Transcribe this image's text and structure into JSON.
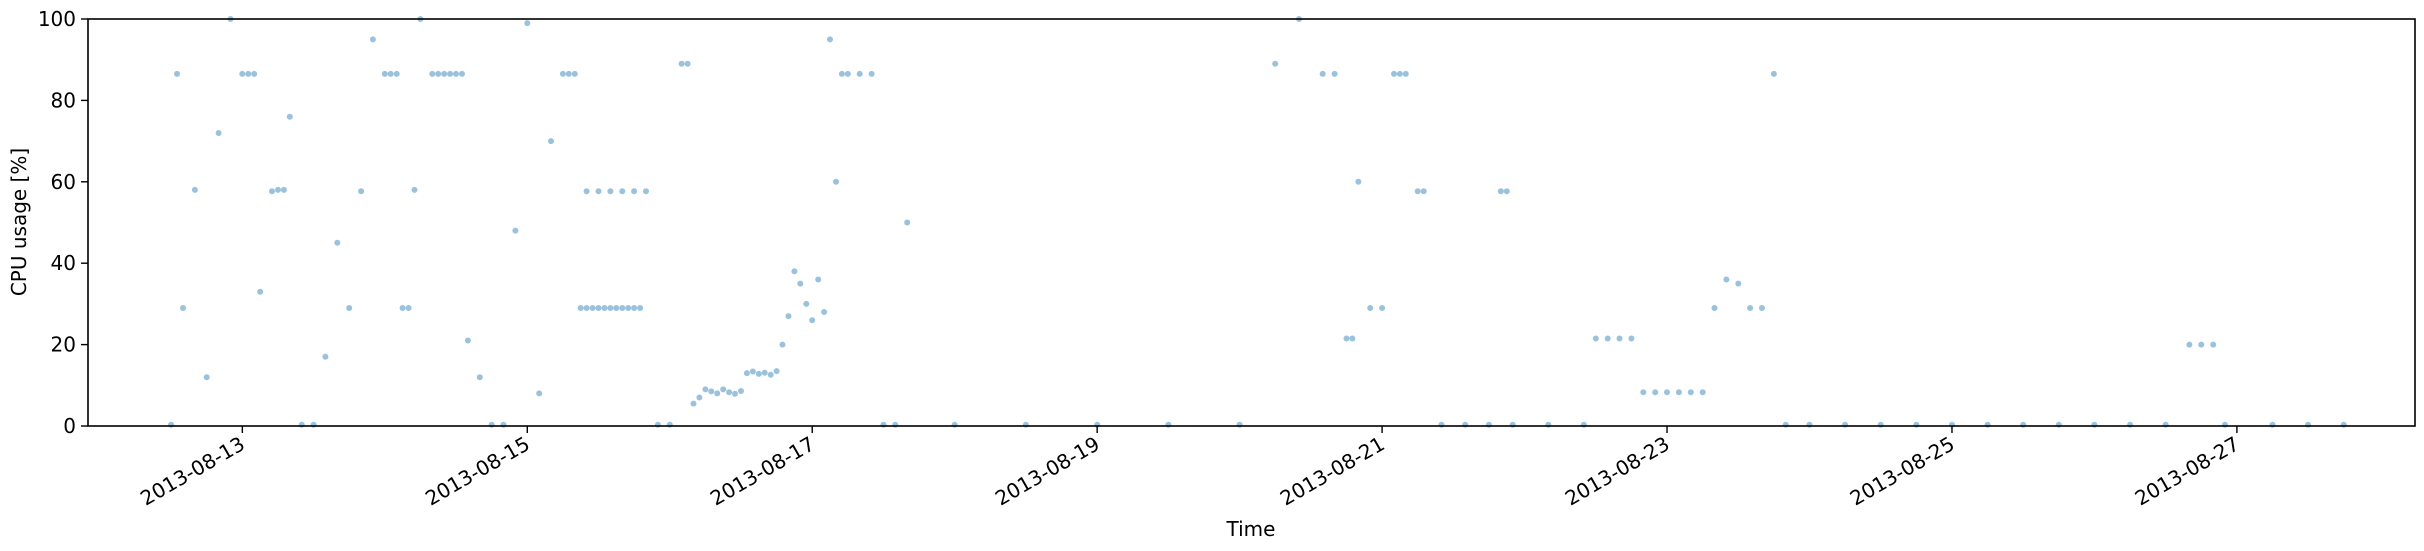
{
  "chart_data": {
    "type": "scatter",
    "title": "",
    "xlabel": "Time",
    "ylabel": "CPU usage [%]",
    "x_range": [
      "2013-08-11T22:00",
      "2013-08-28T06:00"
    ],
    "ylim": [
      0,
      100
    ],
    "x_ticks": [
      "2013-08-13",
      "2013-08-15",
      "2013-08-17",
      "2013-08-19",
      "2013-08-21",
      "2013-08-23",
      "2013-08-25",
      "2013-08-27"
    ],
    "y_ticks": [
      "0",
      "20",
      "40",
      "60",
      "80",
      "100"
    ],
    "grid": false,
    "legend": "none",
    "series": [
      {
        "color": "#1f77b4",
        "marker": "dot",
        "alpha": 0.45,
        "points": [
          [
            "2013-08-12T12:00",
            0.3
          ],
          [
            "2013-08-12T13:00",
            86.5
          ],
          [
            "2013-08-12T14:00",
            29
          ],
          [
            "2013-08-12T16:00",
            58
          ],
          [
            "2013-08-12T18:00",
            12
          ],
          [
            "2013-08-12T20:00",
            72
          ],
          [
            "2013-08-12T22:00",
            100
          ],
          [
            "2013-08-13T00:00",
            86.5
          ],
          [
            "2013-08-13T01:00",
            86.5
          ],
          [
            "2013-08-13T02:00",
            86.5
          ],
          [
            "2013-08-13T03:00",
            33
          ],
          [
            "2013-08-13T05:00",
            57.7
          ],
          [
            "2013-08-13T06:00",
            58
          ],
          [
            "2013-08-13T07:00",
            58
          ],
          [
            "2013-08-13T08:00",
            76
          ],
          [
            "2013-08-13T10:00",
            0.3
          ],
          [
            "2013-08-13T12:00",
            0.3
          ],
          [
            "2013-08-13T14:00",
            17
          ],
          [
            "2013-08-13T16:00",
            45
          ],
          [
            "2013-08-13T18:00",
            29
          ],
          [
            "2013-08-13T20:00",
            57.7
          ],
          [
            "2013-08-13T22:00",
            95
          ],
          [
            "2013-08-14T00:00",
            86.5
          ],
          [
            "2013-08-14T01:00",
            86.5
          ],
          [
            "2013-08-14T02:00",
            86.5
          ],
          [
            "2013-08-14T03:00",
            29
          ],
          [
            "2013-08-14T04:00",
            29
          ],
          [
            "2013-08-14T05:00",
            58
          ],
          [
            "2013-08-14T06:00",
            100
          ],
          [
            "2013-08-14T08:00",
            86.5
          ],
          [
            "2013-08-14T09:00",
            86.5
          ],
          [
            "2013-08-14T10:00",
            86.5
          ],
          [
            "2013-08-14T11:00",
            86.5
          ],
          [
            "2013-08-14T12:00",
            86.5
          ],
          [
            "2013-08-14T13:00",
            86.5
          ],
          [
            "2013-08-14T14:00",
            21
          ],
          [
            "2013-08-14T16:00",
            12
          ],
          [
            "2013-08-14T18:00",
            0.3
          ],
          [
            "2013-08-14T20:00",
            0.3
          ],
          [
            "2013-08-14T22:00",
            48
          ],
          [
            "2013-08-15T00:00",
            99
          ],
          [
            "2013-08-15T02:00",
            8
          ],
          [
            "2013-08-15T04:00",
            70
          ],
          [
            "2013-08-15T06:00",
            86.5
          ],
          [
            "2013-08-15T07:00",
            86.5
          ],
          [
            "2013-08-15T08:00",
            86.5
          ],
          [
            "2013-08-15T09:00",
            29
          ],
          [
            "2013-08-15T10:00",
            29
          ],
          [
            "2013-08-15T11:00",
            29
          ],
          [
            "2013-08-15T12:00",
            29
          ],
          [
            "2013-08-15T13:00",
            29
          ],
          [
            "2013-08-15T14:00",
            29
          ],
          [
            "2013-08-15T15:00",
            29
          ],
          [
            "2013-08-15T16:00",
            29
          ],
          [
            "2013-08-15T17:00",
            29
          ],
          [
            "2013-08-15T18:00",
            29
          ],
          [
            "2013-08-15T19:00",
            29
          ],
          [
            "2013-08-15T10:00",
            57.7
          ],
          [
            "2013-08-15T12:00",
            57.7
          ],
          [
            "2013-08-15T14:00",
            57.7
          ],
          [
            "2013-08-15T16:00",
            57.7
          ],
          [
            "2013-08-15T18:00",
            57.7
          ],
          [
            "2013-08-15T20:00",
            57.7
          ],
          [
            "2013-08-15T22:00",
            0.3
          ],
          [
            "2013-08-16T00:00",
            0.3
          ],
          [
            "2013-08-16T02:00",
            89
          ],
          [
            "2013-08-16T03:00",
            89
          ],
          [
            "2013-08-16T04:00",
            5.5
          ],
          [
            "2013-08-16T05:00",
            7
          ],
          [
            "2013-08-16T06:00",
            9
          ],
          [
            "2013-08-16T07:00",
            8.5
          ],
          [
            "2013-08-16T08:00",
            8
          ],
          [
            "2013-08-16T09:00",
            9
          ],
          [
            "2013-08-16T10:00",
            8.3
          ],
          [
            "2013-08-16T11:00",
            7.9
          ],
          [
            "2013-08-16T12:00",
            8.6
          ],
          [
            "2013-08-16T13:00",
            13
          ],
          [
            "2013-08-16T14:00",
            13.4
          ],
          [
            "2013-08-16T15:00",
            12.8
          ],
          [
            "2013-08-16T16:00",
            13.1
          ],
          [
            "2013-08-16T17:00",
            12.6
          ],
          [
            "2013-08-16T18:00",
            13.5
          ],
          [
            "2013-08-16T19:00",
            20
          ],
          [
            "2013-08-16T20:00",
            27
          ],
          [
            "2013-08-16T21:00",
            38
          ],
          [
            "2013-08-16T22:00",
            35
          ],
          [
            "2013-08-16T23:00",
            30
          ],
          [
            "2013-08-17T00:00",
            26
          ],
          [
            "2013-08-17T01:00",
            36
          ],
          [
            "2013-08-17T02:00",
            28
          ],
          [
            "2013-08-17T03:00",
            95
          ],
          [
            "2013-08-17T04:00",
            60
          ],
          [
            "2013-08-17T05:00",
            86.5
          ],
          [
            "2013-08-17T06:00",
            86.5
          ],
          [
            "2013-08-17T08:00",
            86.5
          ],
          [
            "2013-08-17T10:00",
            86.5
          ],
          [
            "2013-08-17T12:00",
            0.3
          ],
          [
            "2013-08-17T14:00",
            0.3
          ],
          [
            "2013-08-17T16:00",
            50
          ],
          [
            "2013-08-18T00:00",
            0.3
          ],
          [
            "2013-08-18T12:00",
            0.3
          ],
          [
            "2013-08-19T00:00",
            0.3
          ],
          [
            "2013-08-19T12:00",
            0.3
          ],
          [
            "2013-08-20T00:00",
            0.3
          ],
          [
            "2013-08-20T06:00",
            89
          ],
          [
            "2013-08-20T10:00",
            100
          ],
          [
            "2013-08-20T14:00",
            86.5
          ],
          [
            "2013-08-20T16:00",
            86.5
          ],
          [
            "2013-08-20T18:00",
            21.5
          ],
          [
            "2013-08-20T19:00",
            21.5
          ],
          [
            "2013-08-20T20:00",
            60
          ],
          [
            "2013-08-20T22:00",
            29
          ],
          [
            "2013-08-21T00:00",
            29
          ],
          [
            "2013-08-21T02:00",
            86.5
          ],
          [
            "2013-08-21T03:00",
            86.5
          ],
          [
            "2013-08-21T04:00",
            86.5
          ],
          [
            "2013-08-21T06:00",
            57.7
          ],
          [
            "2013-08-21T07:00",
            57.7
          ],
          [
            "2013-08-21T10:00",
            0.3
          ],
          [
            "2013-08-21T14:00",
            0.3
          ],
          [
            "2013-08-21T18:00",
            0.3
          ],
          [
            "2013-08-21T20:00",
            57.7
          ],
          [
            "2013-08-21T21:00",
            57.7
          ],
          [
            "2013-08-21T22:00",
            0.3
          ],
          [
            "2013-08-22T04:00",
            0.3
          ],
          [
            "2013-08-22T10:00",
            0.3
          ],
          [
            "2013-08-22T12:00",
            21.5
          ],
          [
            "2013-08-22T14:00",
            21.5
          ],
          [
            "2013-08-22T16:00",
            21.5
          ],
          [
            "2013-08-22T18:00",
            21.5
          ],
          [
            "2013-08-22T20:00",
            8.3
          ],
          [
            "2013-08-22T22:00",
            8.3
          ],
          [
            "2013-08-23T00:00",
            8.3
          ],
          [
            "2013-08-23T02:00",
            8.3
          ],
          [
            "2013-08-23T04:00",
            8.3
          ],
          [
            "2013-08-23T06:00",
            8.3
          ],
          [
            "2013-08-23T08:00",
            29
          ],
          [
            "2013-08-23T10:00",
            36
          ],
          [
            "2013-08-23T12:00",
            35
          ],
          [
            "2013-08-23T14:00",
            29
          ],
          [
            "2013-08-23T16:00",
            29
          ],
          [
            "2013-08-23T18:00",
            86.5
          ],
          [
            "2013-08-23T20:00",
            0.3
          ],
          [
            "2013-08-24T00:00",
            0.3
          ],
          [
            "2013-08-24T06:00",
            0.3
          ],
          [
            "2013-08-24T12:00",
            0.3
          ],
          [
            "2013-08-24T18:00",
            0.3
          ],
          [
            "2013-08-25T00:00",
            0.3
          ],
          [
            "2013-08-25T06:00",
            0.3
          ],
          [
            "2013-08-25T12:00",
            0.3
          ],
          [
            "2013-08-25T18:00",
            0.3
          ],
          [
            "2013-08-26T00:00",
            0.3
          ],
          [
            "2013-08-26T06:00",
            0.3
          ],
          [
            "2013-08-26T12:00",
            0.3
          ],
          [
            "2013-08-26T16:00",
            20
          ],
          [
            "2013-08-26T18:00",
            20
          ],
          [
            "2013-08-26T20:00",
            20
          ],
          [
            "2013-08-26T22:00",
            0.3
          ],
          [
            "2013-08-27T06:00",
            0.3
          ],
          [
            "2013-08-27T12:00",
            0.3
          ],
          [
            "2013-08-27T18:00",
            0.3
          ]
        ]
      }
    ]
  }
}
